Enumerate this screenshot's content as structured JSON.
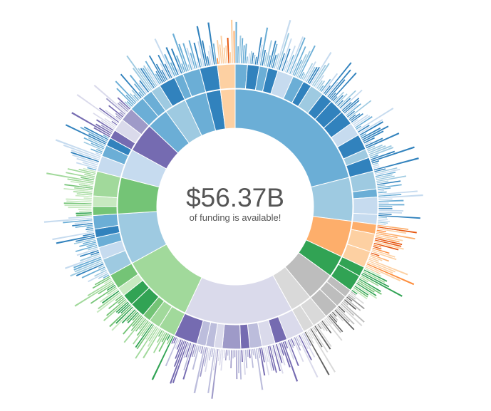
{
  "center": {
    "total": "$56.37B",
    "caption": "of funding is available!"
  },
  "palette": [
    "#6baed6",
    "#9ecae1",
    "#c6dbef",
    "#3182bd",
    "#fd8d3c",
    "#fdae6b",
    "#fdd0a2",
    "#e6550d",
    "#31a354",
    "#74c476",
    "#a1d99b",
    "#c7e9c0",
    "#756bb1",
    "#9e9ac8",
    "#bcbddc",
    "#dadaeb",
    "#636363",
    "#969696",
    "#bdbdbd",
    "#d9d9d9"
  ],
  "chart_data": {
    "type": "sunburst",
    "title": "",
    "total_label": "$56.37B",
    "note": "values are approximate angular shares (percent of total) read from the figure",
    "inner_ring": [
      {
        "color": "#6baed6",
        "value": 21
      },
      {
        "color": "#9ecae1",
        "value": 6
      },
      {
        "color": "#fdae6b",
        "value": 5
      },
      {
        "color": "#31a354",
        "value": 3
      },
      {
        "color": "#bdbdbd",
        "value": 4
      },
      {
        "color": "#d9d9d9",
        "value": 3
      },
      {
        "color": "#dadaeb",
        "value": 15
      },
      {
        "color": "#a1d99b",
        "value": 10
      },
      {
        "color": "#9ecae1",
        "value": 7
      },
      {
        "color": "#74c476",
        "value": 5
      },
      {
        "color": "#c6dbef",
        "value": 4
      },
      {
        "color": "#756bb1",
        "value": 4
      },
      {
        "color": "#6baed6",
        "value": 3
      },
      {
        "color": "#9ecae1",
        "value": 3
      },
      {
        "color": "#6baed6",
        "value": 3
      },
      {
        "color": "#3182bd",
        "value": 2
      },
      {
        "color": "#fdd0a2",
        "value": 2
      }
    ]
  }
}
